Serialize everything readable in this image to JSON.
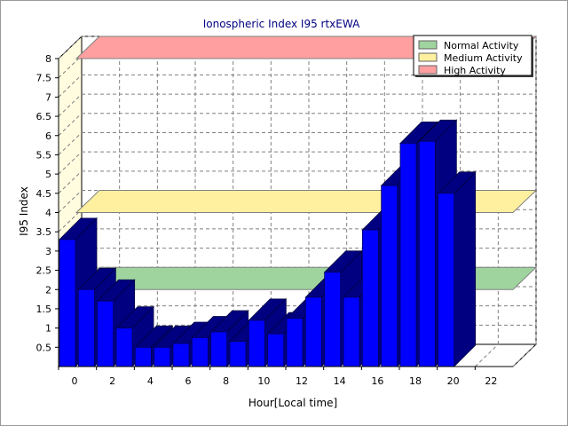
{
  "chart_data": {
    "type": "bar",
    "title": "Ionospheric Index I95 rtxEWA",
    "xlabel": "Hour[Local time]",
    "ylabel": "I95 Index",
    "x_tick_labels": [
      "0",
      "2",
      "4",
      "6",
      "8",
      "10",
      "12",
      "14",
      "16",
      "18",
      "20",
      "22"
    ],
    "y_tick_labels": [
      "0.5",
      "1",
      "1.5",
      "2",
      "2.5",
      "3",
      "3.5",
      "4",
      "4.5",
      "5",
      "5.5",
      "6",
      "6.5",
      "7",
      "7.5",
      "8"
    ],
    "ylim": [
      0,
      8
    ],
    "xlim": [
      0,
      24
    ],
    "hours": [
      0,
      1,
      2,
      3,
      4,
      5,
      6,
      7,
      8,
      9,
      10,
      11,
      12,
      13,
      14,
      15,
      16,
      17,
      18,
      19,
      20
    ],
    "values": [
      3.3,
      2.0,
      1.7,
      1.0,
      0.5,
      0.5,
      0.6,
      0.75,
      0.9,
      0.65,
      1.2,
      0.85,
      1.25,
      1.8,
      2.45,
      1.8,
      3.55,
      4.7,
      5.8,
      5.85,
      4.5
    ],
    "bands": [
      {
        "name": "Normal Activity",
        "low": 2.0,
        "high": 2.0,
        "color": "#9fd49f"
      },
      {
        "name": "Medium Activity",
        "low": 4.0,
        "high": 4.0,
        "color": "#fff0a0"
      },
      {
        "name": "High Activity",
        "low": 8.0,
        "high": 8.0,
        "color": "#ff9f9f"
      }
    ],
    "bar_color": "#0000ff",
    "bar_side_color": "#000080",
    "grid": true,
    "legend_position": "top-right"
  }
}
